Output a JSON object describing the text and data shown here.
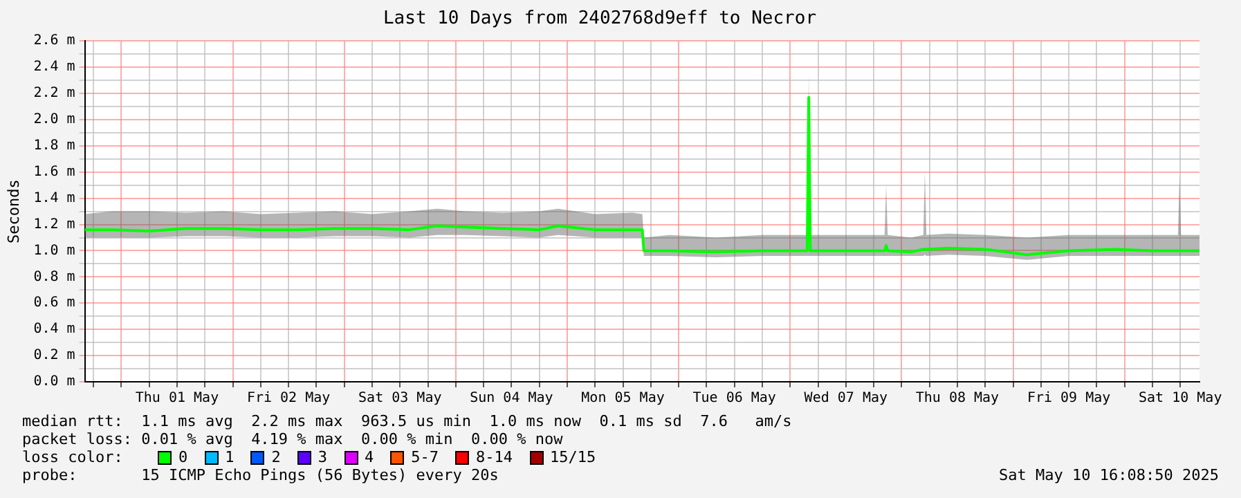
{
  "chart_data": {
    "type": "line",
    "title": "Last 10 Days from 2402768d9eff to Necror",
    "ylabel": "Seconds",
    "legend_title": "loss color:",
    "legend": "bottom",
    "grid": true,
    "marker": "none",
    "line_style": "solid",
    "xlim": [
      "2025-04-30T16:08",
      "2025-05-10T16:08"
    ],
    "ylim": [
      0,
      2.6
    ],
    "yticks": [
      {
        "value": 0,
        "label": "0.0 m"
      },
      {
        "value": 0.1,
        "label": null
      },
      {
        "value": 0.2,
        "label": "0.2 m"
      },
      {
        "value": 0.3,
        "label": null
      },
      {
        "value": 0.4,
        "label": "0.4 m"
      },
      {
        "value": 0.5,
        "label": null
      },
      {
        "value": 0.6,
        "label": "0.6 m"
      },
      {
        "value": 0.7,
        "label": null
      },
      {
        "value": 0.8,
        "label": "0.8 m"
      },
      {
        "value": 0.9,
        "label": null
      },
      {
        "value": 1.0,
        "label": "1.0 m"
      },
      {
        "value": 1.1,
        "label": null
      },
      {
        "value": 1.2,
        "label": "1.2 m"
      },
      {
        "value": 1.3,
        "label": null
      },
      {
        "value": 1.4,
        "label": "1.4 m"
      },
      {
        "value": 1.5,
        "label": null
      },
      {
        "value": 1.6,
        "label": "1.6 m"
      },
      {
        "value": 1.7,
        "label": null
      },
      {
        "value": 1.8,
        "label": "1.8 m"
      },
      {
        "value": 1.9,
        "label": null
      },
      {
        "value": 2.0,
        "label": "2.0 m"
      },
      {
        "value": 2.1,
        "label": null
      },
      {
        "value": 2.2,
        "label": "2.2 m"
      },
      {
        "value": 2.3,
        "label": null
      },
      {
        "value": 2.4,
        "label": "2.4 m"
      },
      {
        "value": 2.5,
        "label": null
      },
      {
        "value": 2.6,
        "label": "2.6 m"
      }
    ],
    "xticks": [
      {
        "value": "2025-04-30T18:00",
        "label": null
      },
      {
        "value": "2025-05-01T00:00",
        "label": null
      },
      {
        "value": "2025-05-01T06:00",
        "label": null
      },
      {
        "value": "2025-05-01T12:00",
        "label": "Thu 01 May"
      },
      {
        "value": "2025-05-01T18:00",
        "label": null
      },
      {
        "value": "2025-05-02T00:00",
        "label": null
      },
      {
        "value": "2025-05-02T06:00",
        "label": null
      },
      {
        "value": "2025-05-02T12:00",
        "label": "Fri 02 May"
      },
      {
        "value": "2025-05-02T18:00",
        "label": null
      },
      {
        "value": "2025-05-03T00:00",
        "label": null
      },
      {
        "value": "2025-05-03T06:00",
        "label": null
      },
      {
        "value": "2025-05-03T12:00",
        "label": "Sat 03 May"
      },
      {
        "value": "2025-05-03T18:00",
        "label": null
      },
      {
        "value": "2025-05-04T00:00",
        "label": null
      },
      {
        "value": "2025-05-04T06:00",
        "label": null
      },
      {
        "value": "2025-05-04T12:00",
        "label": "Sun 04 May"
      },
      {
        "value": "2025-05-04T18:00",
        "label": null
      },
      {
        "value": "2025-05-05T00:00",
        "label": null
      },
      {
        "value": "2025-05-05T06:00",
        "label": null
      },
      {
        "value": "2025-05-05T12:00",
        "label": "Mon 05 May"
      },
      {
        "value": "2025-05-05T18:00",
        "label": null
      },
      {
        "value": "2025-05-06T00:00",
        "label": null
      },
      {
        "value": "2025-05-06T06:00",
        "label": null
      },
      {
        "value": "2025-05-06T12:00",
        "label": "Tue 06 May"
      },
      {
        "value": "2025-05-06T18:00",
        "label": null
      },
      {
        "value": "2025-05-07T00:00",
        "label": null
      },
      {
        "value": "2025-05-07T06:00",
        "label": null
      },
      {
        "value": "2025-05-07T12:00",
        "label": "Wed 07 May"
      },
      {
        "value": "2025-05-07T18:00",
        "label": null
      },
      {
        "value": "2025-05-08T00:00",
        "label": null
      },
      {
        "value": "2025-05-08T06:00",
        "label": null
      },
      {
        "value": "2025-05-08T12:00",
        "label": "Thu 08 May"
      },
      {
        "value": "2025-05-08T18:00",
        "label": null
      },
      {
        "value": "2025-05-09T00:00",
        "label": null
      },
      {
        "value": "2025-05-09T06:00",
        "label": null
      },
      {
        "value": "2025-05-09T12:00",
        "label": "Fri 09 May"
      },
      {
        "value": "2025-05-09T18:00",
        "label": null
      },
      {
        "value": "2025-05-10T00:00",
        "label": null
      },
      {
        "value": "2025-05-10T06:00",
        "label": null
      },
      {
        "value": "2025-05-10T12:00",
        "label": "Sat 10 May"
      }
    ],
    "x": [
      "2025-04-30T16:08",
      "2025-04-30T22:00",
      "2025-05-01T06:00",
      "2025-05-01T14:00",
      "2025-05-01T22:00",
      "2025-05-02T06:00",
      "2025-05-02T14:00",
      "2025-05-02T22:00",
      "2025-05-03T06:00",
      "2025-05-03T14:00",
      "2025-05-03T20:00",
      "2025-05-04T02:00",
      "2025-05-04T10:00",
      "2025-05-04T18:00",
      "2025-05-04T22:00",
      "2025-05-05T06:00",
      "2025-05-05T14:00",
      "2025-05-05T16:10",
      "2025-05-05T16:30",
      "2025-05-05T22:00",
      "2025-05-06T08:00",
      "2025-05-06T18:00",
      "2025-05-07T03:40",
      "2025-05-07T04:00",
      "2025-05-07T04:20",
      "2025-05-07T12:00",
      "2025-05-07T20:20",
      "2025-05-07T20:40",
      "2025-05-07T21:00",
      "2025-05-08T02:00",
      "2025-05-08T04:40",
      "2025-05-08T05:00",
      "2025-05-08T05:20",
      "2025-05-08T10:00",
      "2025-05-08T18:00",
      "2025-05-09T03:00",
      "2025-05-09T12:00",
      "2025-05-09T22:00",
      "2025-05-10T06:00",
      "2025-05-10T11:30",
      "2025-05-10T11:50",
      "2025-05-10T12:10",
      "2025-05-10T16:08"
    ],
    "series": [
      {
        "name": "0",
        "color": "#00ff00",
        "values": [
          1.16,
          1.16,
          1.15,
          1.17,
          1.17,
          1.16,
          1.16,
          1.17,
          1.17,
          1.16,
          1.19,
          1.18,
          1.17,
          1.16,
          1.19,
          1.16,
          1.16,
          1.16,
          1.0,
          1.0,
          0.99,
          1.0,
          1.0,
          2.17,
          1.0,
          1.0,
          1.0,
          1.04,
          1.0,
          0.99,
          1.01,
          1.01,
          1.01,
          1.02,
          1.01,
          0.97,
          1.0,
          1.01,
          1.0,
          1.0,
          1.0,
          1.0,
          1.0
        ],
        "lower": [
          1.1,
          1.1,
          1.1,
          1.11,
          1.11,
          1.1,
          1.1,
          1.11,
          1.11,
          1.1,
          1.12,
          1.12,
          1.11,
          1.1,
          1.12,
          1.1,
          1.1,
          1.1,
          0.96,
          0.96,
          0.95,
          0.96,
          0.96,
          0.96,
          0.96,
          0.96,
          0.96,
          0.96,
          0.96,
          0.96,
          0.96,
          0.97,
          0.96,
          0.97,
          0.96,
          0.93,
          0.96,
          0.96,
          0.96,
          0.96,
          0.96,
          0.96,
          0.96
        ],
        "upper": [
          1.28,
          1.3,
          1.3,
          1.29,
          1.3,
          1.28,
          1.29,
          1.3,
          1.28,
          1.3,
          1.32,
          1.3,
          1.29,
          1.3,
          1.32,
          1.28,
          1.29,
          1.28,
          1.1,
          1.12,
          1.1,
          1.12,
          1.12,
          2.35,
          1.12,
          1.12,
          1.12,
          1.5,
          1.12,
          1.1,
          1.12,
          1.6,
          1.12,
          1.13,
          1.12,
          1.1,
          1.12,
          1.12,
          1.12,
          1.12,
          1.57,
          1.12,
          1.12
        ]
      },
      {
        "name": "1",
        "color": "#00bbff",
        "values": [
          null,
          null,
          null,
          null,
          null,
          null,
          null,
          null,
          null,
          null,
          null,
          null,
          null,
          null,
          null,
          null,
          null,
          null,
          null,
          null,
          null,
          null,
          null,
          null,
          null,
          null,
          null,
          null,
          null,
          null,
          null,
          null,
          null,
          null,
          null,
          null,
          null,
          null,
          null,
          null,
          null,
          null,
          null
        ]
      },
      {
        "name": "2",
        "color": "#0059ff",
        "values": [
          null,
          null,
          null,
          null,
          null,
          null,
          null,
          null,
          null,
          null,
          null,
          null,
          null,
          null,
          null,
          null,
          null,
          null,
          null,
          null,
          null,
          null,
          null,
          null,
          null,
          null,
          null,
          null,
          null,
          null,
          null,
          null,
          null,
          null,
          null,
          null,
          null,
          null,
          null,
          null,
          null,
          null,
          null
        ]
      },
      {
        "name": "3",
        "color": "#5e00ff",
        "values": [
          null,
          null,
          null,
          null,
          null,
          null,
          null,
          null,
          null,
          null,
          null,
          null,
          null,
          null,
          null,
          null,
          null,
          null,
          null,
          null,
          null,
          null,
          null,
          null,
          null,
          null,
          null,
          null,
          null,
          null,
          null,
          null,
          null,
          null,
          null,
          null,
          null,
          null,
          null,
          null,
          null,
          null,
          null
        ]
      },
      {
        "name": "4",
        "color": "#e000ff",
        "values": [
          null,
          null,
          null,
          null,
          null,
          null,
          null,
          null,
          null,
          null,
          null,
          null,
          null,
          null,
          null,
          null,
          null,
          null,
          null,
          null,
          null,
          null,
          null,
          null,
          null,
          null,
          null,
          null,
          null,
          null,
          null,
          null,
          null,
          null,
          null,
          null,
          null,
          null,
          null,
          null,
          null,
          null,
          null
        ]
      },
      {
        "name": "5-7",
        "color": "#ff5500",
        "values": [
          null,
          null,
          null,
          null,
          null,
          null,
          null,
          null,
          null,
          null,
          null,
          null,
          null,
          null,
          null,
          null,
          null,
          null,
          null,
          null,
          null,
          null,
          null,
          null,
          null,
          null,
          null,
          null,
          null,
          null,
          null,
          null,
          null,
          null,
          null,
          null,
          null,
          null,
          null,
          null,
          null,
          null,
          null
        ]
      },
      {
        "name": "8-14",
        "color": "#ff0000",
        "values": [
          null,
          null,
          null,
          null,
          null,
          null,
          null,
          null,
          null,
          null,
          null,
          null,
          null,
          null,
          null,
          null,
          null,
          null,
          null,
          null,
          null,
          null,
          null,
          null,
          null,
          null,
          null,
          null,
          null,
          null,
          null,
          null,
          null,
          null,
          null,
          null,
          null,
          null,
          null,
          null,
          null,
          null,
          null
        ]
      },
      {
        "name": "15/15",
        "color": "#a10000",
        "values": [
          null,
          null,
          null,
          null,
          null,
          null,
          null,
          null,
          null,
          null,
          null,
          null,
          null,
          null,
          null,
          null,
          null,
          null,
          null,
          null,
          null,
          null,
          null,
          null,
          null,
          null,
          null,
          null,
          null,
          null,
          null,
          null,
          null,
          null,
          null,
          null,
          null,
          null,
          null,
          null,
          null,
          null,
          null
        ]
      }
    ],
    "annotations": [
      "median rtt:  1.1 ms avg  2.2 ms max  963.5 us min  1.0 ms now  0.1 ms sd  7.6   am/s",
      "packet loss: 0.01 % avg  4.19 % max  0.00 % min  0.00 % now",
      "probe:       15 ICMP Echo Pings (56 Bytes) every 20s",
      "Sat May 10 16:08:50 2025"
    ]
  }
}
